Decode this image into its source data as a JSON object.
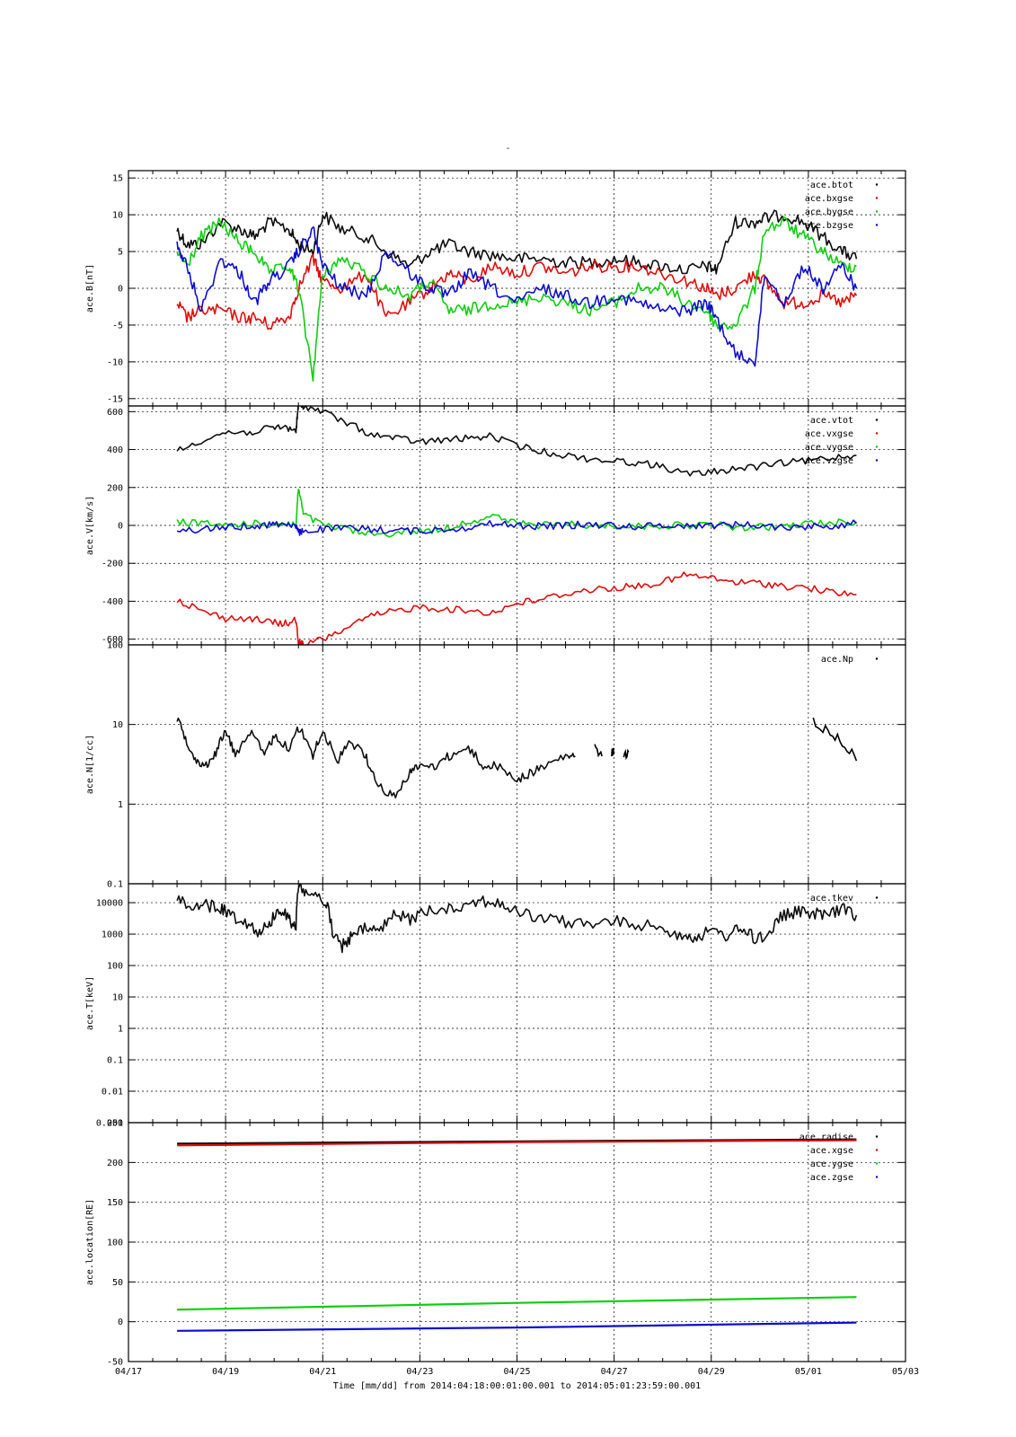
{
  "page": {
    "title": "-"
  },
  "chart_data": {
    "type": "line",
    "xlabel": "Time [mm/dd]  from 2014:04:18:00:01:00.001  to  2014:05:01:23:59:00.001",
    "x_ticks": [
      "04/17",
      "04/19",
      "04/21",
      "04/23",
      "04/25",
      "04/27",
      "04/29",
      "05/01",
      "05/03"
    ],
    "x_range_days": [
      0,
      16
    ],
    "data_range_days": [
      1.0,
      14.99
    ],
    "colors": {
      "black": "#000000",
      "red": "#dd0000",
      "green": "#00cc00",
      "blue": "#0000cc"
    },
    "panels": [
      {
        "ylabel": "ace.B[nT]",
        "yscale": "linear",
        "ylim": [
          -16,
          16
        ],
        "ytick_values": [
          -15,
          -10,
          -5,
          0,
          5,
          10,
          15
        ],
        "ytick_labels": [
          "-15",
          "-10",
          "-5",
          "0",
          "5",
          "10",
          "15"
        ],
        "series": [
          {
            "name": "ace.btot",
            "color": "#000000",
            "x": [
              1.0,
              1.2,
              1.5,
              1.9,
              2.3,
              2.6,
              2.9,
              3.3,
              3.5,
              3.8,
              4.0,
              4.4,
              4.9,
              5.3,
              5.8,
              6.2,
              6.6,
              7.0,
              7.5,
              8.0,
              8.5,
              9.0,
              9.5,
              10.0,
              10.5,
              11.0,
              11.5,
              11.9,
              12.1,
              12.5,
              12.9,
              13.1,
              13.5,
              13.9,
              14.3,
              14.7,
              14.99
            ],
            "y": [
              8,
              6,
              6,
              9,
              8,
              7,
              9,
              8,
              6,
              5,
              10,
              8,
              7,
              5,
              3,
              5,
              6,
              5,
              4.5,
              4,
              4,
              3.5,
              3.5,
              4,
              3.5,
              3,
              2.5,
              3,
              2.5,
              9,
              9,
              9.5,
              10,
              9,
              7,
              5,
              4
            ]
          },
          {
            "name": "ace.bxgse",
            "color": "#dd0000",
            "x": [
              1.0,
              1.2,
              1.5,
              1.9,
              2.3,
              2.6,
              2.9,
              3.3,
              3.5,
              3.8,
              4.0,
              4.4,
              4.9,
              5.3,
              5.8,
              6.2,
              6.6,
              7.0,
              7.5,
              8.0,
              8.5,
              9.0,
              9.5,
              10.0,
              10.5,
              11.0,
              11.5,
              11.9,
              12.1,
              12.5,
              12.9,
              13.1,
              13.5,
              13.9,
              14.3,
              14.7,
              14.99
            ],
            "y": [
              -2,
              -4,
              -3,
              -3,
              -4,
              -4,
              -5,
              -4,
              0,
              4,
              1,
              0,
              2,
              -4,
              -2,
              0,
              2,
              1,
              3,
              2,
              3,
              2,
              3,
              3,
              3,
              2,
              1,
              0,
              -1,
              0,
              2,
              1,
              -2,
              -2,
              -1,
              -2,
              -1
            ]
          },
          {
            "name": "ace.bygse",
            "color": "#00cc00",
            "x": [
              1.0,
              1.2,
              1.5,
              1.9,
              2.3,
              2.6,
              2.9,
              3.3,
              3.5,
              3.8,
              4.0,
              4.4,
              4.9,
              5.3,
              5.8,
              6.2,
              6.6,
              7.0,
              7.5,
              8.0,
              8.5,
              9.0,
              9.5,
              10.0,
              10.5,
              11.0,
              11.5,
              11.9,
              12.1,
              12.5,
              12.9,
              13.1,
              13.5,
              13.9,
              14.3,
              14.7,
              14.99
            ],
            "y": [
              5,
              3,
              7,
              9,
              6,
              5,
              2,
              3,
              0,
              -12,
              2,
              4,
              2,
              0,
              -1,
              1,
              -3,
              -3,
              -2,
              -2,
              -1,
              -2,
              -3,
              -2,
              0,
              0,
              -2,
              -3,
              -5,
              -5,
              0,
              8,
              9,
              7,
              5,
              3,
              3
            ]
          },
          {
            "name": "ace.bzgse",
            "color": "#0000cc",
            "x": [
              1.0,
              1.2,
              1.5,
              1.9,
              2.3,
              2.6,
              2.9,
              3.3,
              3.5,
              3.8,
              4.0,
              4.4,
              4.9,
              5.3,
              5.8,
              6.2,
              6.6,
              7.0,
              7.5,
              8.0,
              8.5,
              9.0,
              9.5,
              10.0,
              10.5,
              11.0,
              11.5,
              11.9,
              12.1,
              12.5,
              12.9,
              13.1,
              13.5,
              13.9,
              14.3,
              14.7,
              14.99
            ],
            "y": [
              6,
              3,
              -3,
              4,
              2,
              -2,
              1,
              3,
              5,
              8,
              3,
              0,
              -1,
              5,
              2,
              0,
              -1,
              2,
              0,
              -2,
              0,
              -1,
              -2,
              -1,
              -2,
              -3,
              -3,
              -2,
              -4,
              -9,
              -10,
              2,
              -2,
              3,
              0,
              3,
              0
            ]
          }
        ]
      },
      {
        "ylabel": "ace.V[km/s]",
        "yscale": "linear",
        "ylim": [
          -630,
          630
        ],
        "ytick_values": [
          -600,
          -400,
          -200,
          0,
          200,
          400,
          600
        ],
        "ytick_labels": [
          "-600",
          "-400",
          "-200",
          "0",
          "200",
          "400",
          "600"
        ],
        "series": [
          {
            "name": "ace.vtot",
            "color": "#000000",
            "x": [
              1.0,
              1.5,
              2.0,
              2.5,
              2.9,
              3.2,
              3.45,
              3.5,
              3.6,
              4.0,
              4.5,
              5.0,
              5.5,
              6.0,
              6.5,
              7.0,
              7.5,
              8.0,
              8.5,
              9.0,
              9.5,
              10.0,
              10.5,
              11.0,
              11.5,
              12.0,
              12.5,
              13.0,
              13.5,
              14.0,
              14.5,
              14.99
            ],
            "y": [
              390,
              450,
              490,
              490,
              510,
              520,
              500,
              640,
              630,
              600,
              540,
              480,
              460,
              440,
              450,
              460,
              470,
              420,
              390,
              370,
              350,
              340,
              330,
              310,
              270,
              280,
              300,
              310,
              330,
              340,
              360,
              370
            ]
          },
          {
            "name": "ace.vxgse",
            "color": "#dd0000",
            "x": [
              1.0,
              1.5,
              2.0,
              2.5,
              2.9,
              3.2,
              3.45,
              3.5,
              3.6,
              4.0,
              4.5,
              5.0,
              5.5,
              6.0,
              6.5,
              7.0,
              7.5,
              8.0,
              8.5,
              9.0,
              9.5,
              10.0,
              10.5,
              11.0,
              11.5,
              12.0,
              12.5,
              13.0,
              13.5,
              14.0,
              14.5,
              14.99
            ],
            "y": [
              -390,
              -450,
              -490,
              -490,
              -510,
              -520,
              -500,
              -620,
              -630,
              -600,
              -540,
              -480,
              -450,
              -430,
              -440,
              -450,
              -460,
              -410,
              -390,
              -360,
              -340,
              -330,
              -320,
              -300,
              -260,
              -280,
              -300,
              -305,
              -320,
              -330,
              -355,
              -365
            ]
          },
          {
            "name": "ace.vygse",
            "color": "#00cc00",
            "x": [
              1.0,
              1.5,
              2.0,
              2.5,
              2.9,
              3.2,
              3.45,
              3.5,
              3.6,
              4.0,
              4.5,
              5.0,
              5.5,
              6.0,
              6.5,
              7.0,
              7.5,
              8.0,
              8.5,
              9.0,
              9.5,
              10.0,
              10.5,
              11.0,
              11.5,
              12.0,
              12.5,
              13.0,
              13.5,
              14.0,
              14.5,
              14.99
            ],
            "y": [
              20,
              10,
              0,
              10,
              5,
              10,
              5,
              200,
              60,
              0,
              -20,
              -50,
              -40,
              -30,
              -20,
              20,
              50,
              10,
              0,
              5,
              0,
              0,
              -5,
              0,
              0,
              5,
              -10,
              -10,
              -5,
              10,
              15,
              20
            ]
          },
          {
            "name": "ace.vzgse",
            "color": "#0000cc",
            "x": [
              1.0,
              1.5,
              2.0,
              2.5,
              2.9,
              3.2,
              3.45,
              3.5,
              3.6,
              4.0,
              4.5,
              5.0,
              5.5,
              6.0,
              6.5,
              7.0,
              7.5,
              8.0,
              8.5,
              9.0,
              9.5,
              10.0,
              10.5,
              11.0,
              11.5,
              12.0,
              12.5,
              13.0,
              13.5,
              14.0,
              14.5,
              14.99
            ],
            "y": [
              -30,
              -20,
              -10,
              -5,
              5,
              10,
              0,
              -40,
              -30,
              -20,
              -15,
              -20,
              -25,
              -30,
              -20,
              -10,
              10,
              0,
              -5,
              0,
              5,
              0,
              -5,
              0,
              0,
              0,
              5,
              0,
              -10,
              -5,
              0,
              10
            ]
          }
        ]
      },
      {
        "ylabel": "ace.N[1/cc]",
        "yscale": "log",
        "ylim": [
          0.1,
          100
        ],
        "ytick_values": [
          0.1,
          1,
          10,
          100
        ],
        "ytick_labels": [
          "0.1",
          "1",
          "10",
          "100"
        ],
        "series": [
          {
            "name": "ace.Np",
            "color": "#000000",
            "x": [
              1.0,
              1.2,
              1.4,
              1.6,
              1.8,
              2.0,
              2.2,
              2.5,
              2.8,
              3.0,
              3.3,
              3.5,
              3.8,
              4.0,
              4.3,
              4.5,
              4.8,
              5.0,
              5.2,
              5.5,
              5.8,
              6.0,
              6.3,
              6.6,
              7.0,
              7.3,
              7.6,
              8.0,
              8.3,
              8.6,
              9.0,
              9.2
            ],
            "y": [
              12,
              6,
              3.5,
              3,
              4.5,
              8,
              4,
              8,
              4,
              7,
              5,
              9,
              4,
              8,
              3,
              6,
              5,
              2.5,
              1.6,
              1.2,
              2.5,
              3,
              3,
              4,
              5,
              3,
              3,
              2,
              2.5,
              3,
              4,
              4
            ],
            "extra_segments": [
              {
                "x": [
                  9.6,
                  9.75
                ],
                "y": [
                  5,
                  4
                ]
              },
              {
                "x": [
                  9.95,
                  10.0
                ],
                "y": [
                  4.5,
                  4.5
                ]
              },
              {
                "x": [
                  10.2,
                  10.3
                ],
                "y": [
                  4,
                  4.5
                ]
              },
              {
                "x": [
                  14.1,
                  14.4,
                  14.7,
                  14.99
                ],
                "y": [
                  11,
                  8,
                  6,
                  3.5
                ]
              }
            ]
          }
        ]
      },
      {
        "ylabel": "ace.T[keV]",
        "yscale": "log",
        "ylim": [
          0.001,
          40000
        ],
        "ytick_values": [
          0.001,
          0.01,
          0.1,
          1,
          10,
          100,
          1000,
          10000
        ],
        "ytick_labels": [
          "0.001",
          "0.01",
          "0.1",
          "1",
          "10",
          "100",
          "1000",
          "10000"
        ],
        "series": [
          {
            "name": "ace.tkev",
            "color": "#000000",
            "x": [
              1.0,
              1.3,
              1.6,
              1.9,
              2.1,
              2.4,
              2.7,
              2.9,
              3.1,
              3.3,
              3.45,
              3.5,
              3.7,
              4.0,
              4.2,
              4.4,
              4.6,
              4.9,
              5.2,
              5.5,
              5.8,
              6.1,
              6.5,
              6.9,
              7.3,
              7.7,
              8.0,
              8.5,
              9.0,
              9.5,
              10.0,
              10.5,
              11.0,
              11.4,
              11.7,
              12.0,
              12.3,
              12.6,
              12.9,
              13.2,
              13.5,
              13.8,
              14.1,
              14.4,
              14.7,
              14.99
            ],
            "y": [
              12000,
              9000,
              8000,
              7000,
              4000,
              2500,
              1100,
              2000,
              6000,
              3000,
              1500,
              30000,
              20000,
              12000,
              800,
              400,
              800,
              1500,
              1200,
              4000,
              3000,
              5000,
              7000,
              8000,
              12000,
              8000,
              5000,
              3000,
              2500,
              2000,
              2500,
              2000,
              1500,
              900,
              800,
              1200,
              900,
              1500,
              700,
              1000,
              4000,
              5000,
              4500,
              4000,
              6000,
              4000
            ]
          }
        ]
      },
      {
        "ylabel": "ace.location[RE]",
        "yscale": "linear",
        "ylim": [
          -50,
          250
        ],
        "ytick_values": [
          -50,
          0,
          50,
          100,
          150,
          200,
          250
        ],
        "ytick_labels": [
          "-50",
          "0",
          "50",
          "100",
          "150",
          "200",
          "250"
        ],
        "series": [
          {
            "name": "ace.radise",
            "color": "#000000",
            "x": [
              1.0,
              14.99
            ],
            "y": [
              223,
              229
            ]
          },
          {
            "name": "ace.xgse",
            "color": "#dd0000",
            "x": [
              1.0,
              14.99
            ],
            "y": [
              222,
              228
            ]
          },
          {
            "name": "ace.ygse",
            "color": "#00cc00",
            "x": [
              1.0,
              14.99
            ],
            "y": [
              15,
              31
            ]
          },
          {
            "name": "ace.zgse",
            "color": "#0000cc",
            "x": [
              1.0,
              14.99
            ],
            "y": [
              -12,
              -1
            ]
          }
        ]
      }
    ]
  }
}
